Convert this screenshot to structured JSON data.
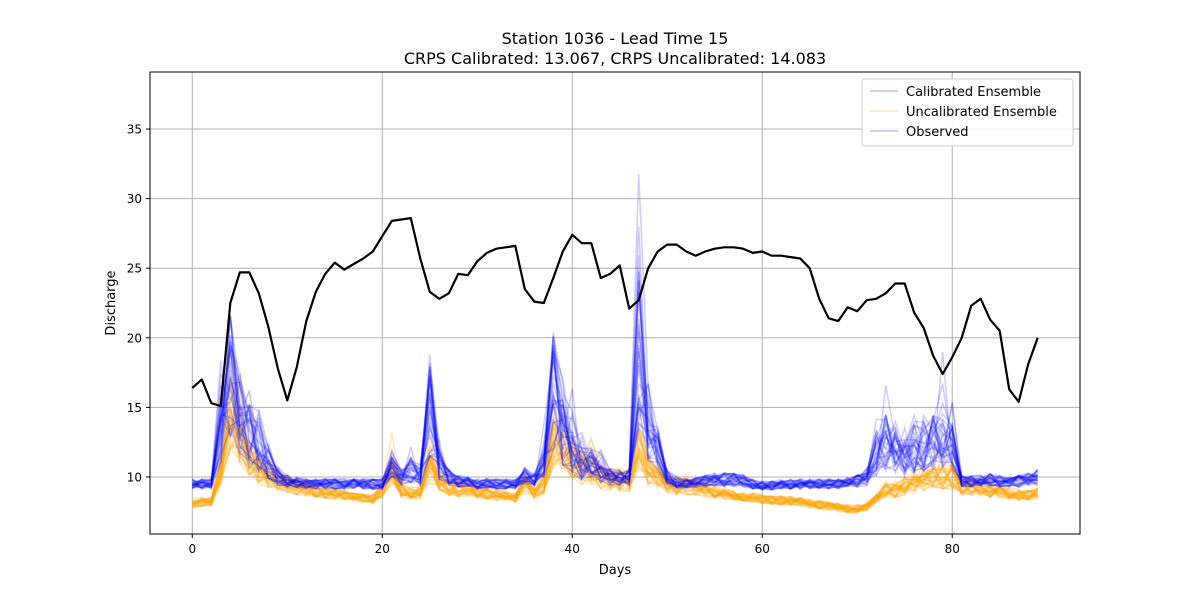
{
  "chart_data": {
    "type": "line",
    "title": "Station 1036 - Lead Time 15",
    "subtitle": "CRPS Calibrated: 13.067, CRPS Uncalibrated: 14.083",
    "xlabel": "Days",
    "ylabel": "Discharge",
    "xlim": [
      -4.45,
      93.45
    ],
    "ylim": [
      5.9,
      39.1
    ],
    "xticks": [
      0,
      20,
      40,
      60,
      80
    ],
    "yticks": [
      10,
      15,
      20,
      25,
      30,
      35
    ],
    "grid": true,
    "legend_position": "top-right",
    "legend": [
      "Calibrated Ensemble",
      "Uncalibrated Ensemble",
      "Observed"
    ],
    "colors": {
      "calibrated": "#0000ff",
      "uncalibrated": "#ffa500",
      "observed": "#000000",
      "grid": "#b0b0b0"
    },
    "observed": {
      "name": "Observed",
      "x": [
        0,
        1,
        2,
        3,
        4,
        5,
        6,
        7,
        8,
        9,
        10,
        11,
        12,
        13,
        14,
        15,
        16,
        17,
        18,
        19,
        20,
        21,
        22,
        23,
        24,
        25,
        26,
        27,
        28,
        29,
        30,
        31,
        32,
        33,
        34,
        35,
        36,
        37,
        38,
        39,
        40,
        41,
        42,
        43,
        44,
        45,
        46,
        47,
        48,
        49,
        50,
        51,
        52,
        53,
        54,
        55,
        56,
        57,
        58,
        59,
        60,
        61,
        62,
        63,
        64,
        65,
        66,
        67,
        68,
        69,
        70,
        71,
        72,
        73,
        74,
        75,
        76,
        77,
        78,
        79,
        80,
        81,
        82,
        83,
        84,
        85,
        86,
        87,
        88,
        89
      ],
      "y": [
        16.4,
        17.0,
        15.3,
        15.1,
        22.5,
        24.7,
        24.7,
        23.2,
        20.8,
        17.8,
        15.5,
        17.9,
        21.2,
        23.3,
        24.6,
        25.4,
        24.9,
        25.3,
        25.7,
        26.2,
        27.3,
        28.4,
        28.5,
        28.6,
        25.7,
        23.3,
        22.8,
        23.2,
        24.6,
        24.5,
        25.5,
        26.1,
        26.4,
        26.5,
        26.6,
        23.5,
        22.6,
        22.5,
        24.3,
        26.2,
        27.4,
        26.8,
        26.8,
        24.3,
        24.6,
        25.2,
        22.1,
        22.7,
        25.0,
        26.2,
        26.7,
        26.7,
        26.2,
        25.9,
        26.2,
        26.4,
        26.5,
        26.5,
        26.4,
        26.1,
        26.2,
        25.9,
        25.9,
        25.8,
        25.7,
        25.0,
        22.8,
        21.4,
        21.2,
        22.2,
        21.9,
        22.7,
        22.8,
        23.2,
        23.9,
        23.9,
        21.8,
        20.7,
        18.7,
        17.4,
        18.6,
        20.0,
        22.3,
        22.8,
        21.3,
        20.5,
        16.3,
        15.4,
        18.1,
        20.0
      ]
    },
    "calibrated_ensemble_median": {
      "name": "Calibrated Ensemble",
      "x": [
        0,
        1,
        2,
        3,
        4,
        5,
        6,
        7,
        8,
        9,
        10,
        11,
        12,
        13,
        14,
        15,
        16,
        17,
        18,
        19,
        20,
        21,
        22,
        23,
        24,
        25,
        26,
        27,
        28,
        29,
        30,
        31,
        32,
        33,
        34,
        35,
        36,
        37,
        38,
        39,
        40,
        41,
        42,
        43,
        44,
        45,
        46,
        47,
        48,
        49,
        50,
        51,
        52,
        53,
        54,
        55,
        56,
        57,
        58,
        59,
        60,
        61,
        62,
        63,
        64,
        65,
        66,
        67,
        68,
        69,
        70,
        71,
        72,
        73,
        74,
        75,
        76,
        77,
        78,
        79,
        80,
        81,
        82,
        83,
        84,
        85,
        86,
        87,
        88,
        89
      ],
      "y": [
        9.5,
        9.5,
        9.5,
        13.5,
        17.0,
        14.5,
        13.0,
        12.0,
        11.0,
        10.0,
        9.7,
        9.6,
        9.5,
        9.5,
        9.5,
        9.5,
        9.5,
        9.5,
        9.5,
        9.5,
        9.5,
        10.5,
        10.0,
        10.5,
        10.0,
        15.0,
        11.0,
        10.0,
        9.7,
        9.6,
        9.5,
        9.5,
        9.5,
        9.5,
        9.5,
        10.0,
        9.8,
        11.0,
        16.0,
        13.5,
        12.0,
        11.0,
        11.0,
        10.5,
        10.0,
        10.0,
        10.0,
        20.0,
        14.0,
        12.0,
        10.0,
        9.6,
        9.5,
        9.6,
        9.7,
        9.8,
        9.8,
        9.8,
        9.7,
        9.5,
        9.4,
        9.4,
        9.5,
        9.5,
        9.5,
        9.5,
        9.5,
        9.5,
        9.5,
        9.6,
        9.7,
        10.0,
        11.5,
        12.5,
        12.0,
        11.5,
        12.0,
        12.5,
        12.5,
        13.0,
        12.0,
        9.7,
        9.7,
        9.7,
        9.8,
        9.7,
        9.6,
        9.7,
        9.8,
        10.0
      ]
    },
    "uncalibrated_ensemble_median": {
      "name": "Uncalibrated Ensemble",
      "x": [
        0,
        1,
        2,
        3,
        4,
        5,
        6,
        7,
        8,
        9,
        10,
        11,
        12,
        13,
        14,
        15,
        16,
        17,
        18,
        19,
        20,
        21,
        22,
        23,
        24,
        25,
        26,
        27,
        28,
        29,
        30,
        31,
        32,
        33,
        34,
        35,
        36,
        37,
        38,
        39,
        40,
        41,
        42,
        43,
        44,
        45,
        46,
        47,
        48,
        49,
        50,
        51,
        52,
        53,
        54,
        55,
        56,
        57,
        58,
        59,
        60,
        61,
        62,
        63,
        64,
        65,
        66,
        67,
        68,
        69,
        70,
        71,
        72,
        73,
        74,
        75,
        76,
        77,
        78,
        79,
        80,
        81,
        82,
        83,
        84,
        85,
        86,
        87,
        88,
        89
      ],
      "y": [
        8.1,
        8.2,
        8.2,
        10.5,
        14.5,
        13.0,
        11.5,
        10.5,
        10.0,
        9.8,
        9.5,
        9.3,
        9.2,
        9.0,
        8.9,
        8.8,
        8.7,
        8.6,
        8.5,
        8.4,
        9.0,
        10.5,
        9.0,
        8.8,
        8.9,
        10.5,
        9.5,
        9.2,
        9.1,
        9.0,
        8.9,
        8.8,
        8.7,
        8.6,
        8.5,
        9.5,
        8.8,
        9.5,
        12.5,
        12.0,
        11.0,
        10.5,
        10.5,
        10.0,
        9.8,
        9.7,
        9.7,
        12.0,
        10.5,
        10.0,
        9.5,
        9.3,
        9.3,
        9.2,
        9.0,
        8.9,
        8.8,
        8.7,
        8.6,
        8.5,
        8.4,
        8.3,
        8.3,
        8.3,
        8.2,
        8.1,
        8.0,
        7.9,
        7.8,
        7.7,
        7.7,
        7.9,
        8.5,
        9.0,
        9.0,
        9.3,
        9.5,
        9.8,
        10.0,
        10.0,
        10.0,
        9.3,
        9.2,
        9.1,
        9.0,
        8.9,
        8.8,
        8.7,
        8.7,
        8.8
      ]
    }
  }
}
